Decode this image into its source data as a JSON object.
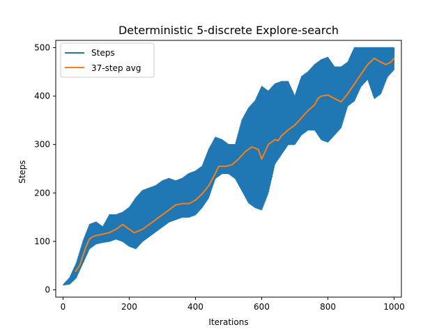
{
  "chart_data": {
    "type": "line",
    "title": "Deterministic 5-discrete Explore-search",
    "xlabel": "Iterations",
    "ylabel": "Steps",
    "xlim": [
      -22,
      1022
    ],
    "ylim": [
      -15,
      515
    ],
    "xticks": [
      0,
      200,
      400,
      600,
      800,
      1000
    ],
    "yticks": [
      0,
      100,
      200,
      300,
      400,
      500
    ],
    "grid": false,
    "legend_position": "top-left",
    "series": [
      {
        "name": "Steps",
        "color": "#1f77b4",
        "lower": [
          [
            0,
            10
          ],
          [
            20,
            12
          ],
          [
            40,
            25
          ],
          [
            60,
            55
          ],
          [
            80,
            85
          ],
          [
            100,
            95
          ],
          [
            120,
            98
          ],
          [
            140,
            100
          ],
          [
            160,
            105
          ],
          [
            180,
            100
          ],
          [
            200,
            90
          ],
          [
            220,
            85
          ],
          [
            240,
            100
          ],
          [
            260,
            110
          ],
          [
            280,
            120
          ],
          [
            300,
            130
          ],
          [
            320,
            140
          ],
          [
            340,
            145
          ],
          [
            360,
            150
          ],
          [
            380,
            150
          ],
          [
            400,
            155
          ],
          [
            420,
            170
          ],
          [
            440,
            190
          ],
          [
            460,
            230
          ],
          [
            480,
            240
          ],
          [
            500,
            240
          ],
          [
            520,
            230
          ],
          [
            540,
            205
          ],
          [
            560,
            180
          ],
          [
            580,
            170
          ],
          [
            600,
            165
          ],
          [
            620,
            200
          ],
          [
            640,
            260
          ],
          [
            660,
            280
          ],
          [
            680,
            300
          ],
          [
            700,
            300
          ],
          [
            720,
            320
          ],
          [
            740,
            330
          ],
          [
            760,
            330
          ],
          [
            780,
            310
          ],
          [
            800,
            305
          ],
          [
            820,
            320
          ],
          [
            840,
            335
          ],
          [
            860,
            380
          ],
          [
            880,
            390
          ],
          [
            900,
            420
          ],
          [
            920,
            435
          ],
          [
            940,
            395
          ],
          [
            960,
            405
          ],
          [
            980,
            440
          ],
          [
            1000,
            455
          ]
        ],
        "upper": [
          [
            0,
            10
          ],
          [
            20,
            25
          ],
          [
            40,
            55
          ],
          [
            60,
            100
          ],
          [
            80,
            135
          ],
          [
            100,
            140
          ],
          [
            120,
            130
          ],
          [
            140,
            155
          ],
          [
            160,
            155
          ],
          [
            180,
            160
          ],
          [
            200,
            170
          ],
          [
            220,
            190
          ],
          [
            240,
            205
          ],
          [
            260,
            210
          ],
          [
            280,
            215
          ],
          [
            300,
            225
          ],
          [
            320,
            230
          ],
          [
            340,
            225
          ],
          [
            360,
            230
          ],
          [
            380,
            240
          ],
          [
            400,
            245
          ],
          [
            420,
            255
          ],
          [
            440,
            290
          ],
          [
            460,
            315
          ],
          [
            480,
            310
          ],
          [
            500,
            300
          ],
          [
            520,
            300
          ],
          [
            540,
            350
          ],
          [
            560,
            375
          ],
          [
            580,
            390
          ],
          [
            600,
            420
          ],
          [
            620,
            410
          ],
          [
            640,
            425
          ],
          [
            660,
            430
          ],
          [
            680,
            430
          ],
          [
            700,
            400
          ],
          [
            720,
            440
          ],
          [
            740,
            450
          ],
          [
            760,
            465
          ],
          [
            780,
            475
          ],
          [
            800,
            480
          ],
          [
            820,
            460
          ],
          [
            840,
            460
          ],
          [
            860,
            470
          ],
          [
            880,
            500
          ],
          [
            900,
            500
          ],
          [
            920,
            500
          ],
          [
            940,
            500
          ],
          [
            960,
            500
          ],
          [
            980,
            500
          ],
          [
            1000,
            500
          ]
        ]
      },
      {
        "name": "37-step avg",
        "color": "#ff7f0e",
        "points": [
          [
            37,
            37
          ],
          [
            50,
            50
          ],
          [
            60,
            70
          ],
          [
            70,
            90
          ],
          [
            80,
            105
          ],
          [
            90,
            110
          ],
          [
            100,
            112
          ],
          [
            120,
            115
          ],
          [
            140,
            118
          ],
          [
            160,
            125
          ],
          [
            180,
            135
          ],
          [
            200,
            125
          ],
          [
            215,
            118
          ],
          [
            240,
            125
          ],
          [
            260,
            135
          ],
          [
            280,
            145
          ],
          [
            300,
            155
          ],
          [
            320,
            165
          ],
          [
            340,
            175
          ],
          [
            360,
            178
          ],
          [
            380,
            178
          ],
          [
            400,
            185
          ],
          [
            420,
            198
          ],
          [
            440,
            215
          ],
          [
            460,
            240
          ],
          [
            470,
            255
          ],
          [
            490,
            255
          ],
          [
            510,
            258
          ],
          [
            530,
            270
          ],
          [
            550,
            285
          ],
          [
            570,
            295
          ],
          [
            590,
            290
          ],
          [
            600,
            270
          ],
          [
            610,
            285
          ],
          [
            620,
            300
          ],
          [
            640,
            310
          ],
          [
            650,
            308
          ],
          [
            660,
            318
          ],
          [
            680,
            330
          ],
          [
            700,
            340
          ],
          [
            720,
            355
          ],
          [
            740,
            370
          ],
          [
            760,
            382
          ],
          [
            770,
            395
          ],
          [
            780,
            400
          ],
          [
            800,
            402
          ],
          [
            820,
            395
          ],
          [
            840,
            388
          ],
          [
            860,
            405
          ],
          [
            880,
            425
          ],
          [
            900,
            445
          ],
          [
            920,
            465
          ],
          [
            940,
            478
          ],
          [
            960,
            470
          ],
          [
            975,
            465
          ],
          [
            990,
            470
          ],
          [
            1000,
            478
          ]
        ]
      }
    ]
  }
}
